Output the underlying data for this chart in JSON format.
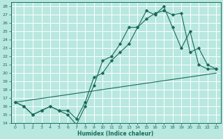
{
  "title": "",
  "xlabel": "Humidex (Indice chaleur)",
  "bg_color": "#b8e8e0",
  "line_color": "#1a6b5a",
  "grid_color": "#ffffff",
  "xlim": [
    -0.5,
    23.5
  ],
  "ylim": [
    14,
    28.5
  ],
  "xticks": [
    0,
    1,
    2,
    3,
    4,
    5,
    6,
    7,
    8,
    9,
    10,
    11,
    12,
    13,
    14,
    15,
    16,
    17,
    18,
    19,
    20,
    21,
    22,
    23
  ],
  "yticks": [
    14,
    15,
    16,
    17,
    18,
    19,
    20,
    21,
    22,
    23,
    24,
    25,
    26,
    27,
    28
  ],
  "line1_x": [
    0,
    1,
    2,
    3,
    4,
    5,
    6,
    7,
    8,
    9,
    10,
    11,
    12,
    13,
    14,
    15,
    16,
    17,
    18,
    19,
    20,
    21,
    22,
    23
  ],
  "line1_y": [
    16.5,
    16.0,
    15.0,
    15.5,
    16.0,
    15.5,
    15.0,
    13.8,
    16.0,
    18.5,
    21.5,
    22.0,
    23.5,
    25.5,
    25.5,
    27.5,
    27.0,
    28.0,
    25.5,
    23.0,
    25.0,
    21.0,
    20.5,
    20.5
  ],
  "line2_x": [
    0,
    1,
    2,
    3,
    4,
    5,
    6,
    7,
    8,
    9,
    10,
    11,
    12,
    13,
    14,
    15,
    16,
    17,
    18,
    19,
    20,
    21,
    22,
    23
  ],
  "line2_y": [
    16.5,
    16.0,
    15.0,
    15.5,
    16.0,
    15.5,
    15.5,
    14.5,
    16.5,
    19.5,
    20.0,
    21.5,
    22.5,
    23.5,
    25.5,
    26.5,
    27.2,
    27.5,
    27.0,
    27.2,
    22.5,
    23.0,
    21.0,
    20.5
  ],
  "line3_x": [
    0,
    23
  ],
  "line3_y": [
    16.5,
    20.0
  ]
}
